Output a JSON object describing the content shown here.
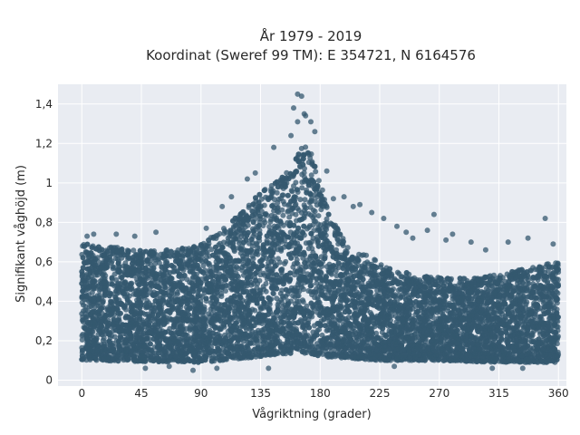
{
  "chart_data": {
    "type": "scatter",
    "title_line1": "År 1979 - 2019",
    "title_line2": "Koordinat (Sweref 99 TM): E 354721, N 6164576",
    "xlabel": "Vågriktning (grader)",
    "ylabel": "Signifikant våghöjd (m)",
    "xlim": [
      -18,
      366
    ],
    "ylim": [
      -0.03,
      1.5
    ],
    "x_ticks": [
      0,
      45,
      90,
      135,
      180,
      225,
      270,
      315,
      360
    ],
    "x_tick_labels": [
      "0",
      "45",
      "90",
      "135",
      "180",
      "225",
      "270",
      "315",
      "360"
    ],
    "y_ticks": [
      0,
      0.2,
      0.4,
      0.6,
      0.8,
      1.0,
      1.2,
      1.4
    ],
    "y_tick_labels": [
      "0",
      "0,2",
      "0,4",
      "0,6",
      "0,8",
      "1",
      "1,2",
      "1,4"
    ],
    "grid": true,
    "legend": "none",
    "colors": {
      "marker": "#34586f",
      "plot_bg": "#e9ecf2",
      "grid": "#ffffff"
    },
    "envelope_upper": [
      [
        0,
        0.7
      ],
      [
        20,
        0.68
      ],
      [
        45,
        0.66
      ],
      [
        70,
        0.66
      ],
      [
        90,
        0.69
      ],
      [
        100,
        0.74
      ],
      [
        110,
        0.78
      ],
      [
        120,
        0.85
      ],
      [
        135,
        0.95
      ],
      [
        150,
        1.04
      ],
      [
        160,
        1.12
      ],
      [
        165,
        1.18
      ],
      [
        170,
        1.2
      ],
      [
        175,
        1.12
      ],
      [
        180,
        1.0
      ],
      [
        190,
        0.8
      ],
      [
        200,
        0.7
      ],
      [
        210,
        0.65
      ],
      [
        225,
        0.6
      ],
      [
        240,
        0.55
      ],
      [
        270,
        0.52
      ],
      [
        300,
        0.52
      ],
      [
        315,
        0.54
      ],
      [
        330,
        0.56
      ],
      [
        345,
        0.58
      ],
      [
        360,
        0.6
      ]
    ],
    "envelope_lower": [
      [
        0,
        0.1
      ],
      [
        90,
        0.09
      ],
      [
        135,
        0.12
      ],
      [
        165,
        0.14
      ],
      [
        180,
        0.12
      ],
      [
        225,
        0.1
      ],
      [
        270,
        0.1
      ],
      [
        315,
        0.09
      ],
      [
        360,
        0.09
      ]
    ],
    "outliers": [
      [
        163,
        1.45
      ],
      [
        166,
        1.44
      ],
      [
        160,
        1.38
      ],
      [
        169,
        1.34
      ],
      [
        163,
        1.31
      ],
      [
        173,
        1.31
      ],
      [
        168,
        1.35
      ],
      [
        158,
        1.24
      ],
      [
        145,
        1.18
      ],
      [
        176,
        1.26
      ],
      [
        185,
        1.06
      ],
      [
        198,
        0.93
      ],
      [
        210,
        0.89
      ],
      [
        219,
        0.85
      ],
      [
        228,
        0.82
      ],
      [
        266,
        0.84
      ],
      [
        261,
        0.76
      ],
      [
        280,
        0.74
      ],
      [
        294,
        0.7
      ],
      [
        350,
        0.82
      ],
      [
        4,
        0.73
      ],
      [
        9,
        0.74
      ],
      [
        26,
        0.74
      ],
      [
        40,
        0.73
      ],
      [
        56,
        0.75
      ],
      [
        94,
        0.77
      ],
      [
        106,
        0.88
      ],
      [
        113,
        0.93
      ],
      [
        125,
        1.02
      ],
      [
        131,
        1.05
      ],
      [
        190,
        0.92
      ],
      [
        205,
        0.88
      ],
      [
        238,
        0.78
      ],
      [
        245,
        0.75
      ],
      [
        250,
        0.72
      ],
      [
        275,
        0.71
      ],
      [
        305,
        0.66
      ],
      [
        322,
        0.7
      ],
      [
        337,
        0.72
      ],
      [
        356,
        0.69
      ],
      [
        48,
        0.06
      ],
      [
        66,
        0.07
      ],
      [
        84,
        0.05
      ],
      [
        102,
        0.06
      ],
      [
        141,
        0.06
      ],
      [
        236,
        0.07
      ],
      [
        310,
        0.06
      ],
      [
        333,
        0.06
      ]
    ]
  }
}
